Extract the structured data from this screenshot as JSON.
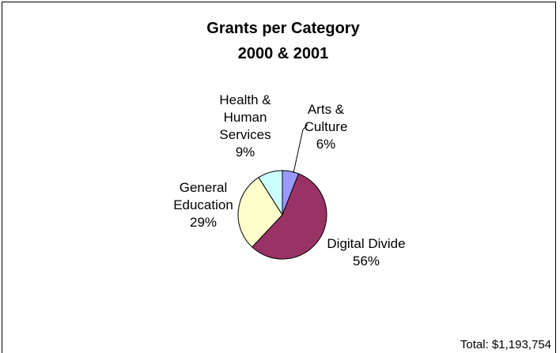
{
  "chart_data": {
    "type": "pie",
    "title": [
      "Grants per Category",
      "2000 & 2001"
    ],
    "slices": [
      {
        "label": [
          "Arts &",
          "Culture"
        ],
        "percent_label": "6%",
        "value": 6,
        "color": "#9999FF"
      },
      {
        "label": [
          "Digital Divide"
        ],
        "percent_label": "56%",
        "value": 56,
        "color": "#993366"
      },
      {
        "label": [
          "General",
          "Education"
        ],
        "percent_label": "29%",
        "value": 29,
        "color": "#FFFFCC"
      },
      {
        "label": [
          "Health &",
          "Human",
          "Services"
        ],
        "percent_label": "9%",
        "value": 9,
        "color": "#CCFFFF"
      }
    ],
    "start_angle_deg": 0,
    "direction": "clockwise",
    "footnote": "Total: $1,193,754"
  }
}
